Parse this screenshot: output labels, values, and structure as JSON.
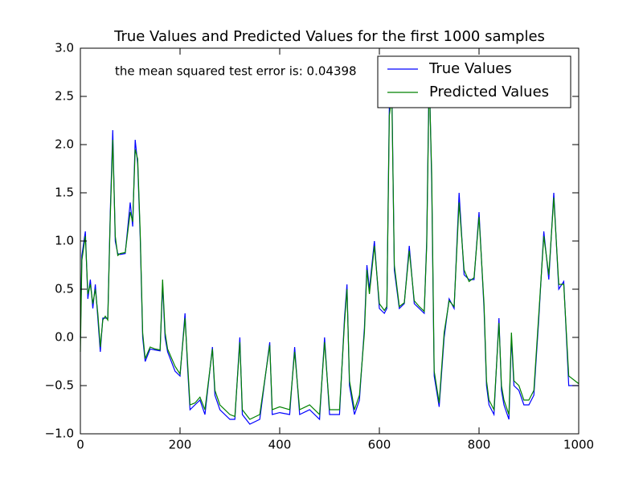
{
  "chart_data": {
    "type": "line",
    "title": "True Values and Predicted Values for the first 1000 samples",
    "annotation": "the mean squared test error is: 0.04398",
    "legend": "upper right",
    "grid": false,
    "x": [
      0,
      3,
      10,
      15,
      20,
      25,
      30,
      35,
      40,
      45,
      50,
      55,
      60,
      65,
      70,
      75,
      80,
      90,
      100,
      105,
      110,
      115,
      120,
      125,
      130,
      140,
      150,
      160,
      165,
      170,
      175,
      190,
      200,
      210,
      215,
      220,
      230,
      240,
      250,
      265,
      270,
      280,
      300,
      310,
      320,
      325,
      340,
      360,
      380,
      385,
      400,
      420,
      430,
      440,
      460,
      480,
      490,
      500,
      520,
      530,
      535,
      540,
      550,
      560,
      570,
      575,
      580,
      590,
      600,
      610,
      615,
      620,
      625,
      630,
      640,
      650,
      660,
      670,
      680,
      690,
      695,
      700,
      705,
      710,
      720,
      730,
      740,
      750,
      760,
      770,
      780,
      790,
      800,
      810,
      815,
      820,
      830,
      840,
      845,
      850,
      860,
      865,
      870,
      880,
      890,
      900,
      910,
      920,
      930,
      940,
      950,
      960,
      970,
      980,
      1000
    ],
    "series": [
      {
        "name": "True Values",
        "color": "#0000ff",
        "values": [
          0.0,
          0.85,
          1.1,
          0.4,
          0.6,
          0.3,
          0.55,
          0.2,
          -0.15,
          0.2,
          0.2,
          0.2,
          1.3,
          2.15,
          1.0,
          0.87,
          0.86,
          0.87,
          1.4,
          1.15,
          2.05,
          1.8,
          1.05,
          0.0,
          -0.25,
          -0.12,
          -0.13,
          -0.14,
          0.55,
          0.0,
          -0.15,
          -0.35,
          -0.4,
          0.25,
          -0.3,
          -0.75,
          -0.7,
          -0.65,
          -0.8,
          -0.1,
          -0.6,
          -0.75,
          -0.85,
          -0.85,
          0.0,
          -0.8,
          -0.9,
          -0.85,
          -0.05,
          -0.8,
          -0.78,
          -0.8,
          -0.1,
          -0.8,
          -0.75,
          -0.85,
          0.0,
          -0.8,
          -0.8,
          0.2,
          0.55,
          -0.5,
          -0.8,
          -0.65,
          0.1,
          0.75,
          0.5,
          1.0,
          0.3,
          0.25,
          0.3,
          2.4,
          2.6,
          0.7,
          0.3,
          0.35,
          0.95,
          0.35,
          0.3,
          0.25,
          1.0,
          2.8,
          1.6,
          -0.4,
          -0.72,
          0.0,
          0.4,
          0.3,
          1.5,
          0.65,
          0.6,
          0.6,
          1.3,
          0.3,
          -0.5,
          -0.7,
          -0.8,
          0.2,
          -0.55,
          -0.7,
          -0.85,
          0.0,
          -0.5,
          -0.55,
          -0.7,
          -0.7,
          -0.6,
          0.2,
          1.1,
          0.6,
          1.5,
          0.5,
          0.58,
          -0.5,
          -0.5
        ]
      },
      {
        "name": "Predicted Values",
        "color": "#008000",
        "values": [
          -0.15,
          0.8,
          1.05,
          0.45,
          0.55,
          0.35,
          0.5,
          0.25,
          -0.1,
          0.18,
          0.22,
          0.18,
          1.25,
          2.05,
          1.05,
          0.85,
          0.87,
          0.88,
          1.3,
          1.2,
          1.95,
          1.85,
          1.1,
          0.05,
          -0.22,
          -0.1,
          -0.12,
          -0.13,
          0.6,
          0.05,
          -0.12,
          -0.3,
          -0.38,
          0.2,
          -0.25,
          -0.7,
          -0.68,
          -0.62,
          -0.75,
          -0.12,
          -0.55,
          -0.7,
          -0.8,
          -0.82,
          -0.05,
          -0.75,
          -0.85,
          -0.8,
          -0.08,
          -0.75,
          -0.72,
          -0.75,
          -0.15,
          -0.75,
          -0.7,
          -0.8,
          -0.05,
          -0.75,
          -0.75,
          0.15,
          0.5,
          -0.45,
          -0.75,
          -0.6,
          0.05,
          0.7,
          0.45,
          0.95,
          0.35,
          0.28,
          0.32,
          2.3,
          2.5,
          0.75,
          0.32,
          0.36,
          0.9,
          0.38,
          0.32,
          0.27,
          0.95,
          2.7,
          1.7,
          -0.35,
          -0.68,
          0.05,
          0.38,
          0.32,
          1.4,
          0.7,
          0.58,
          0.62,
          1.25,
          0.35,
          -0.45,
          -0.65,
          -0.75,
          0.15,
          -0.5,
          -0.65,
          -0.8,
          0.05,
          -0.45,
          -0.5,
          -0.65,
          -0.65,
          -0.55,
          0.25,
          1.05,
          0.65,
          1.45,
          0.55,
          0.55,
          -0.4,
          -0.48
        ]
      }
    ],
    "xlim": [
      0,
      1000
    ],
    "xticks": [
      0,
      200,
      400,
      600,
      800,
      1000
    ],
    "ylim": [
      -1.0,
      3.0
    ],
    "yticks": [
      {
        "value": -1.0,
        "label": "−1.0"
      },
      {
        "value": -0.5,
        "label": "−0.5"
      },
      {
        "value": 0.0,
        "label": "0.0"
      },
      {
        "value": 0.5,
        "label": "0.5"
      },
      {
        "value": 1.0,
        "label": "1.0"
      },
      {
        "value": 1.5,
        "label": "1.5"
      },
      {
        "value": 2.0,
        "label": "2.0"
      },
      {
        "value": 2.5,
        "label": "2.5"
      },
      {
        "value": 3.0,
        "label": "3.0"
      }
    ]
  }
}
